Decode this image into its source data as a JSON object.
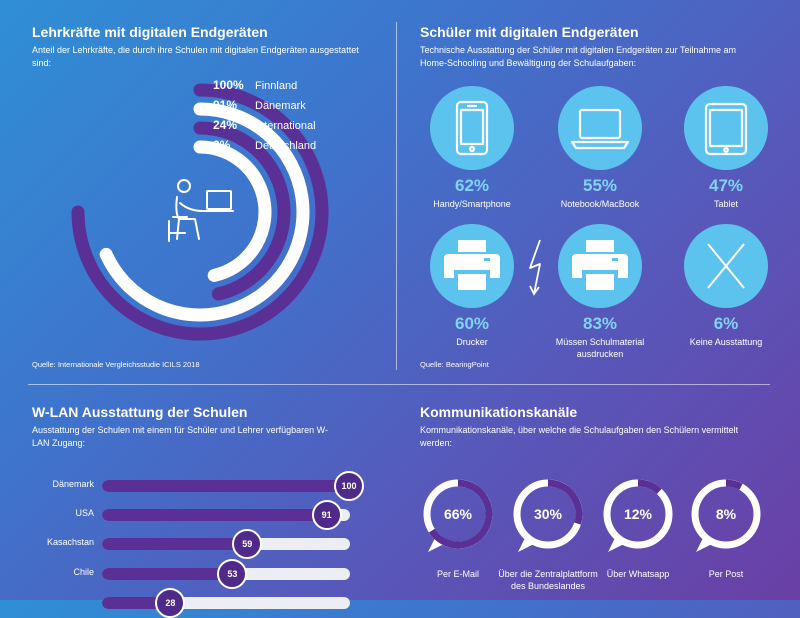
{
  "colors": {
    "purple": "#5a2f96",
    "white": "#ffffff",
    "light_blue": "#5cc3ee",
    "pct_blue": "#7fd3f3"
  },
  "teachers": {
    "title": "Lehrkräfte mit digitalen Endgeräten",
    "subtitle": "Anteil der Lehrkräfte, die durch ihre Schulen mit digitalen Endgeräten ausgestattet sind:",
    "source": "Quelle: Internationale Vergleichsstudie ICILS 2018",
    "icon": "teacher-at-laptop-icon"
  },
  "students": {
    "title": "Schüler mit digitalen Endgeräten",
    "subtitle": "Technische Ausstattung der Schüler mit digitalen Endgeräten zur Teilnahme am Home-Schooling und Bewältigung der Schulaufgaben:",
    "source": "Quelle: BearingPoint",
    "items": [
      {
        "icon": "smartphone-icon",
        "pct": "62%",
        "label": "Handy/Smartphone"
      },
      {
        "icon": "laptop-icon",
        "pct": "55%",
        "label": "Notebook/MacBook"
      },
      {
        "icon": "tablet-icon",
        "pct": "47%",
        "label": "Tablet"
      },
      {
        "icon": "printer-icon",
        "pct": "60%",
        "label": "Drucker"
      },
      {
        "icon": "printer-icon",
        "pct": "83%",
        "label": "Müssen Schulmaterial ausdrucken"
      },
      {
        "icon": "cross-icon",
        "pct": "6%",
        "label": "Keine Ausstattung"
      }
    ],
    "lightning_icon": "lightning-icon"
  },
  "wlan": {
    "title": "W-LAN Ausstattung der Schulen",
    "subtitle": "Ausstattung der Schulen mit einem für Schüler und Lehrer verfügbaren W-LAN Zugang:"
  },
  "komm": {
    "title": "Kommunikationskanäle",
    "subtitle": "Kommunikationskanäle, über welche die Schulaufgaben den Schülern vermittelt werden:",
    "items": [
      {
        "pct": "66%",
        "label": "Per E-Mail"
      },
      {
        "pct": "30%",
        "label": "Über die Zentralplattform des Bundeslandes"
      },
      {
        "pct": "12%",
        "label": "Über Whatsapp"
      },
      {
        "pct": "8%",
        "label": "Per Post"
      }
    ]
  },
  "chart_data": [
    {
      "type": "radial-bar",
      "title": "Lehrkräfte mit digitalen Endgeräten",
      "categories": [
        "Finnland",
        "Dänemark",
        "International",
        "Deutschland"
      ],
      "values": [
        100,
        91,
        24,
        3
      ],
      "labels": [
        "100%",
        "91%",
        "24%",
        "3%"
      ],
      "unit": "%",
      "series_colors": [
        "#5a2f96",
        "#ffffff",
        "#5a2f96",
        "#ffffff"
      ]
    },
    {
      "type": "bar",
      "title": "W-LAN Ausstattung der Schulen",
      "categories": [
        "Dänemark",
        "USA",
        "Kasachstan",
        "Chile",
        ""
      ],
      "values": [
        100,
        91,
        59,
        53,
        28
      ],
      "xlim": [
        0,
        100
      ]
    },
    {
      "type": "donut",
      "title": "Kommunikationskanäle",
      "categories": [
        "Per E-Mail",
        "Über die Zentralplattform des Bundeslandes",
        "Über Whatsapp",
        "Per Post"
      ],
      "values": [
        66,
        30,
        12,
        8
      ],
      "unit": "%"
    }
  ]
}
